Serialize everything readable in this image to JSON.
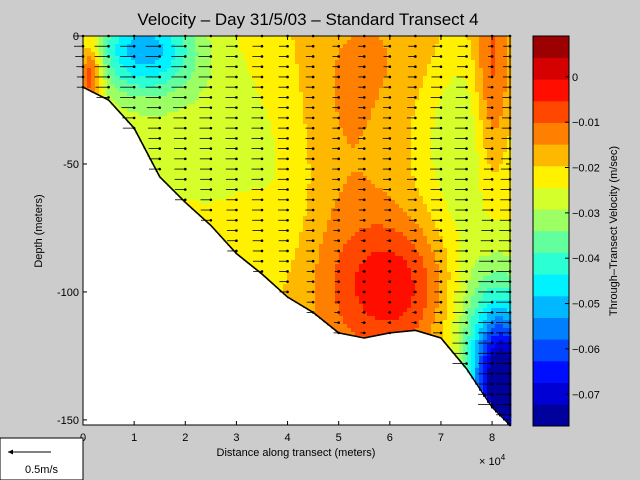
{
  "chart_data": {
    "type": "heatmap",
    "title": "Velocity – Day 31/5/03 – Standard Transect 4",
    "xlabel": "Distance along transect (meters)",
    "ylabel": "Depth (meters)",
    "x_multiplier": "× 10",
    "x_multiplier_exp": "4",
    "xlim": [
      0,
      8.35
    ],
    "ylim": [
      -152,
      0
    ],
    "xticks": [
      0,
      1,
      2,
      3,
      4,
      5,
      6,
      7,
      8
    ],
    "yticks": [
      0,
      -50,
      -100,
      -150
    ],
    "colorbar": {
      "label": "Through–Transect Velocity (m/sec)",
      "range": [
        -0.077,
        0.009
      ],
      "ticks": [
        0,
        -0.01,
        -0.02,
        -0.03,
        -0.04,
        -0.05,
        -0.06,
        -0.07
      ],
      "tick_labels": [
        "0",
        "−0.01",
        "−0.02",
        "−0.03",
        "−0.04",
        "−0.05",
        "−0.06",
        "−0.07"
      ],
      "levels": 18
    },
    "bottom_profile": {
      "x": [
        0,
        0.5,
        1,
        1.5,
        2,
        2.5,
        3,
        3.5,
        4,
        4.5,
        5,
        5.5,
        6,
        6.5,
        7,
        7.5,
        8,
        8.35
      ],
      "depth": [
        -20,
        -25,
        -36,
        -55,
        -65,
        -74,
        -85,
        -93,
        -102,
        -108,
        -116,
        -118,
        -116,
        -115,
        -118,
        -130,
        -145,
        -152
      ]
    },
    "station_x": [
      0,
      0.5,
      1,
      1.5,
      2,
      2.5,
      3,
      3.5,
      4,
      4.5,
      5,
      5.5,
      6,
      6.5,
      7,
      7.5,
      8,
      8.35
    ],
    "scale_arrow_label": "0.5m/s"
  },
  "colors": {
    "background": "#cccccc",
    "plot_fill": "#ffffff",
    "arrows": "#000000"
  }
}
